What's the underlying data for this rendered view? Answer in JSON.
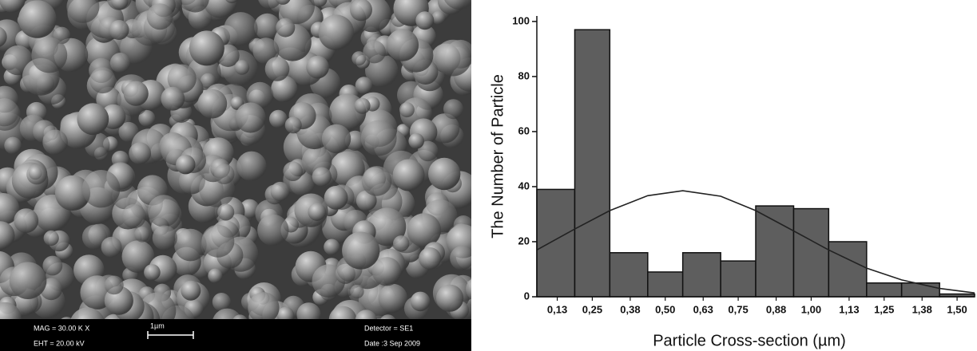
{
  "sem_image": {
    "mag": "MAG = 30.00 K X",
    "eht": "EHT = 20.00 kV",
    "scale_bar": "1µm",
    "detector": "Detector = SE1",
    "date": "Date :3 Sep 2009"
  },
  "chart_data": {
    "type": "histogram",
    "x_label": "Particle Cross-section (µm)",
    "y_label": "The Number of Particle",
    "bins": [
      0.06,
      0.19,
      0.31,
      0.44,
      0.56,
      0.69,
      0.81,
      0.94,
      1.06,
      1.19,
      1.31,
      1.44,
      1.56
    ],
    "values": [
      39,
      97,
      16,
      9,
      16,
      13,
      33,
      32,
      20,
      5,
      5,
      1
    ],
    "color": "#5e5e5e",
    "fit_curve": {
      "color": "#222222",
      "x": [
        0.06,
        0.19,
        0.31,
        0.44,
        0.56,
        0.69,
        0.81,
        0.94,
        1.06,
        1.19,
        1.31,
        1.44,
        1.56
      ],
      "values": [
        17,
        24.6,
        31.3,
        36.7,
        38.5,
        36.5,
        31.3,
        23.9,
        17,
        10.4,
        6.1,
        3,
        1.4
      ]
    },
    "xlim": [
      0.06,
      1.56
    ],
    "ylim": [
      0,
      102
    ],
    "xticks": [
      {
        "value": 0.13,
        "label": "0,13"
      },
      {
        "value": 0.25,
        "label": "0,25"
      },
      {
        "value": 0.38,
        "label": "0,38"
      },
      {
        "value": 0.5,
        "label": "0,50"
      },
      {
        "value": 0.63,
        "label": "0,63"
      },
      {
        "value": 0.75,
        "label": "0,75"
      },
      {
        "value": 0.88,
        "label": "0,88"
      },
      {
        "value": 1.0,
        "label": "1,00"
      },
      {
        "value": 1.13,
        "label": "1,13"
      },
      {
        "value": 1.25,
        "label": "1,25"
      },
      {
        "value": 1.38,
        "label": "1,38"
      },
      {
        "value": 1.5,
        "label": "1,50"
      }
    ],
    "yticks": [
      0,
      20,
      40,
      60,
      80,
      100
    ]
  }
}
